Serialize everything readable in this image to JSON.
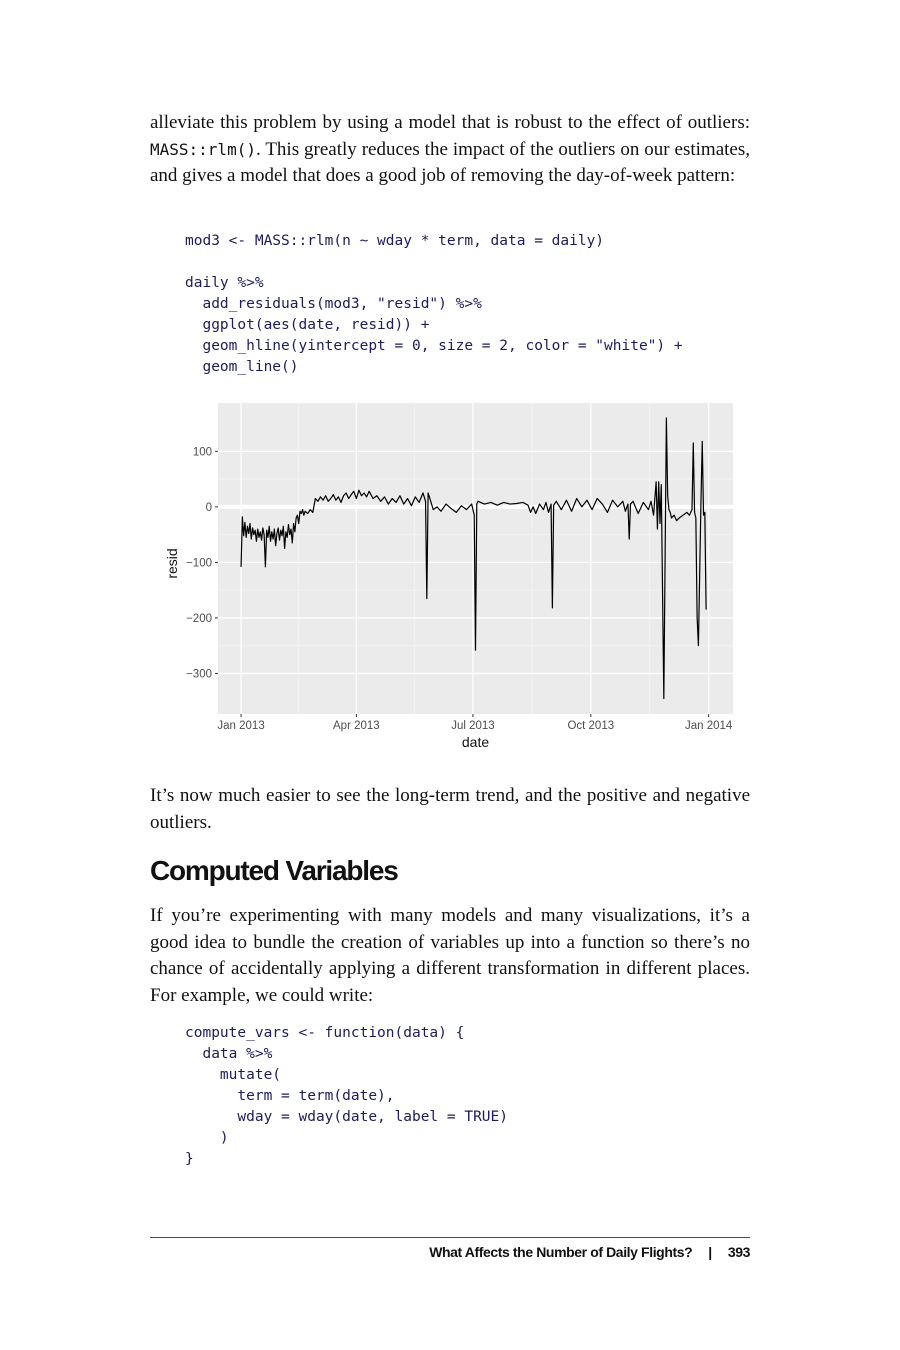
{
  "paragraph_1": {
    "before": "alleviate this problem by using a model that is robust to the effect of outliers: ",
    "code": "MASS::rlm()",
    "after": ". This greatly reduces the impact of the outliers on our estimates, and gives a model that does a good job of removing the day-of-week pattern:"
  },
  "code_1": [
    [
      "mod3 <- MASS::rlm(n ~ wday * term, data = daily)"
    ],
    [
      "daily %>%",
      "  add_residuals(mod3, \"resid\") %>%",
      "  ggplot(aes(date, resid)) +",
      "  geom_hline(yintercept = 0, size = 2, color = \"white\") +",
      "  geom_line()"
    ]
  ],
  "chart_data": {
    "type": "line",
    "x_label": "date",
    "y_label": "resid",
    "x": [
      0,
      1,
      2,
      3,
      4,
      5,
      6,
      7,
      8,
      9,
      10,
      11,
      12,
      13,
      14,
      15,
      16,
      17,
      18,
      19,
      20,
      21,
      22,
      23,
      24,
      25,
      26,
      27,
      28,
      29,
      30,
      31,
      32,
      33,
      34,
      35,
      36,
      37,
      38,
      39,
      40,
      41,
      42,
      43,
      44,
      45,
      46,
      47,
      48,
      49,
      50,
      52,
      54,
      56,
      58,
      60,
      62,
      64,
      66,
      68,
      70,
      72,
      74,
      76,
      78,
      80,
      82,
      84,
      86,
      88,
      90,
      92,
      94,
      96,
      98,
      100,
      103,
      106,
      109,
      112,
      115,
      118,
      121,
      124,
      127,
      130,
      133,
      136,
      139,
      142,
      144,
      145,
      146,
      147,
      150,
      153,
      156,
      160,
      164,
      168,
      172,
      176,
      180,
      182,
      183,
      184,
      185,
      187,
      190,
      195,
      200,
      205,
      210,
      215,
      220,
      224,
      226,
      228,
      230,
      233,
      236,
      238,
      240,
      242,
      243,
      244,
      246,
      250,
      254,
      258,
      262,
      266,
      270,
      274,
      278,
      282,
      286,
      290,
      294,
      298,
      300,
      302,
      303,
      304,
      306,
      310,
      314,
      318,
      320,
      322,
      324,
      325,
      326,
      327,
      328,
      330,
      332,
      333,
      334,
      335,
      336,
      338,
      340,
      342,
      345,
      348,
      350,
      352,
      353,
      354,
      355,
      356,
      357,
      359,
      360,
      361,
      362,
      363
    ],
    "values": [
      -108,
      -18,
      -52,
      -28,
      -55,
      -35,
      -48,
      -30,
      -58,
      -38,
      -50,
      -42,
      -62,
      -40,
      -55,
      -45,
      -60,
      -38,
      -50,
      -108,
      -42,
      -55,
      -35,
      -62,
      -45,
      -58,
      -40,
      -70,
      -48,
      -38,
      -60,
      -42,
      -52,
      -35,
      -75,
      -45,
      -55,
      -32,
      -50,
      -40,
      -65,
      -30,
      -45,
      -20,
      -15,
      -30,
      -8,
      -12,
      -5,
      -15,
      -8,
      -12,
      -5,
      -10,
      15,
      10,
      18,
      12,
      20,
      10,
      15,
      22,
      12,
      18,
      8,
      20,
      25,
      15,
      22,
      28,
      15,
      30,
      20,
      25,
      18,
      28,
      15,
      20,
      10,
      18,
      5,
      15,
      8,
      20,
      5,
      15,
      2,
      18,
      8,
      25,
      10,
      -165,
      25,
      18,
      -5,
      0,
      -8,
      5,
      -3,
      -10,
      2,
      -5,
      5,
      -15,
      -258,
      5,
      10,
      8,
      5,
      8,
      3,
      8,
      5,
      6,
      8,
      3,
      -10,
      0,
      -12,
      5,
      -5,
      8,
      -10,
      5,
      -182,
      3,
      10,
      -5,
      12,
      -8,
      15,
      0,
      12,
      -5,
      15,
      5,
      -10,
      12,
      0,
      10,
      -8,
      5,
      -58,
      5,
      10,
      -12,
      8,
      -5,
      10,
      -15,
      45,
      -40,
      45,
      -30,
      40,
      -345,
      160,
      20,
      -5,
      -10,
      -20,
      -15,
      -25,
      -20,
      -15,
      -10,
      -15,
      -5,
      115,
      -10,
      -20,
      -200,
      -250,
      10,
      118,
      -15,
      -10,
      -185
    ],
    "color": "#000000",
    "xlim": [
      -18,
      384
    ],
    "ylim": [
      -373,
      187
    ],
    "xticks": [
      {
        "value": 0,
        "label": "Jan 2013"
      },
      {
        "value": 90,
        "label": "Apr 2013"
      },
      {
        "value": 181,
        "label": "Jul 2013"
      },
      {
        "value": 273,
        "label": "Oct 2013"
      },
      {
        "value": 365,
        "label": "Jan 2014"
      }
    ],
    "yticks": [
      {
        "value": -300,
        "label": "−300"
      },
      {
        "value": -200,
        "label": "−200"
      },
      {
        "value": -100,
        "label": "−100"
      },
      0,
      100
    ],
    "grid": true
  },
  "paragraph_2": "It’s now much easier to see the long-term trend, and the positive and negative outliers.",
  "heading": "Computed Variables",
  "paragraph_3": "If you’re experimenting with many models and many visualizations, it’s a good idea to bundle the creation of variables up into a function so there’s no chance of accidentally applying a different transformation in different places. For example, we could write:",
  "code_2": [
    [
      "compute_vars <- function(data) {",
      "  data %>%",
      "    mutate(",
      "      term = term(date),",
      "      wday = wday(date, label = TRUE)",
      "    )",
      "}"
    ]
  ],
  "footer": {
    "title": "What Affects the Number of Daily Flights?",
    "page": "393"
  }
}
